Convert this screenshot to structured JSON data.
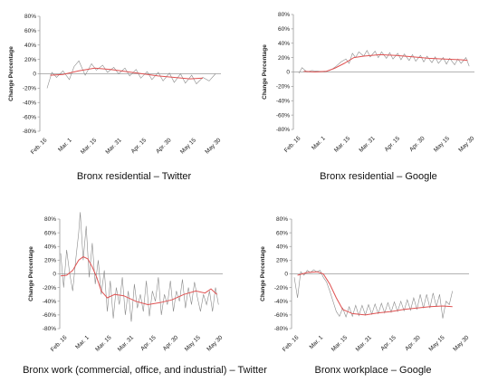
{
  "chart_data": [
    {
      "type": "line",
      "title": "Bronx residential – Twitter",
      "ylabel": "Change Percentage",
      "ylim": [
        -80,
        80
      ],
      "yticks": [
        "80%",
        "60%",
        "40%",
        "20%",
        "0",
        "-20%",
        "-40%",
        "-60%",
        "-80%"
      ],
      "xticks": [
        "Feb. 16",
        "Mar. 1",
        "Mar. 15",
        "Mar. 31",
        "Apr. 15",
        "Apr. 30",
        "May 15",
        "May 30"
      ],
      "colors": {
        "raw": "#8a8a8a",
        "trend": "#e05252"
      },
      "series": [
        {
          "role": "raw",
          "x": [
            0,
            3,
            6,
            10,
            14,
            17,
            20,
            24,
            28,
            31,
            35,
            38,
            42,
            45,
            49,
            52,
            56,
            59,
            63,
            66,
            70,
            73,
            77,
            80,
            84,
            87,
            91,
            94,
            98,
            102,
            106
          ],
          "y": [
            -20,
            2,
            -5,
            4,
            -8,
            10,
            18,
            -2,
            14,
            5,
            12,
            2,
            9,
            0,
            8,
            -3,
            6,
            -6,
            3,
            -8,
            2,
            -10,
            1,
            -12,
            0,
            -13,
            -2,
            -14,
            -5,
            -10,
            0
          ]
        },
        {
          "role": "trend",
          "x": [
            2,
            10,
            20,
            30,
            40,
            50,
            60,
            70,
            80,
            90,
            98
          ],
          "y": [
            -2,
            -1,
            4,
            8,
            6,
            3,
            0,
            -3,
            -5,
            -7,
            -6
          ]
        }
      ]
    },
    {
      "type": "line",
      "title": "Bronx residential – Google",
      "ylabel": "Change Percentage",
      "ylim": [
        -80,
        80
      ],
      "yticks": [
        "80%",
        "60%",
        "40%",
        "20%",
        "0",
        "-20%",
        "-40%",
        "-60%",
        "-80%"
      ],
      "xticks": [
        "Feb. 16",
        "Mar. 1",
        "Mar. 15",
        "Mar. 31",
        "Apr. 15",
        "Apr. 30",
        "May 15",
        "May 30"
      ],
      "colors": {
        "raw": "#8a8a8a",
        "trend": "#e05252"
      },
      "series": [
        {
          "role": "raw",
          "x": [
            0,
            2,
            5,
            8,
            12,
            16,
            20,
            23,
            26,
            29,
            31,
            33,
            35,
            37,
            40,
            42,
            44,
            47,
            49,
            51,
            54,
            56,
            58,
            61,
            63,
            65,
            68,
            70,
            72,
            75,
            77,
            79,
            82,
            84,
            86,
            89,
            91,
            93,
            96,
            98,
            100,
            103,
            105
          ],
          "y": [
            -2,
            6,
            0,
            2,
            1,
            0,
            3,
            8,
            14,
            18,
            12,
            26,
            20,
            28,
            22,
            30,
            21,
            29,
            20,
            28,
            19,
            27,
            18,
            26,
            17,
            25,
            16,
            24,
            15,
            23,
            14,
            22,
            13,
            21,
            12,
            20,
            11,
            19,
            10,
            18,
            12,
            20,
            8
          ]
        },
        {
          "role": "trend",
          "x": [
            3,
            10,
            17,
            22,
            28,
            34,
            40,
            50,
            60,
            70,
            80,
            90,
            100,
            104
          ],
          "y": [
            1,
            0,
            1,
            5,
            12,
            20,
            22,
            24,
            23,
            21,
            19,
            18,
            17,
            16
          ]
        }
      ]
    },
    {
      "type": "line",
      "title": "Bronx work (commercial, office, and industrial) – Twitter",
      "ylabel": "Change Percentage",
      "ylim": [
        -80,
        80
      ],
      "yticks": [
        "80%",
        "60%",
        "40%",
        "20%",
        "0",
        "-20%",
        "-40%",
        "-60%",
        "-80%"
      ],
      "xticks": [
        "Feb. 16",
        "Mar. 1",
        "Mar. 15",
        "Mar. 31",
        "Apr. 15",
        "Apr. 30",
        "May 15",
        "May 30"
      ],
      "colors": {
        "raw": "#8a8a8a",
        "trend": "#e05252"
      },
      "series": [
        {
          "role": "raw",
          "x": [
            0,
            2,
            4,
            6,
            8,
            10,
            12,
            13,
            15,
            17,
            19,
            21,
            23,
            25,
            27,
            29,
            31,
            33,
            35,
            37,
            39,
            41,
            43,
            45,
            47,
            49,
            51,
            53,
            55,
            57,
            59,
            61,
            63,
            65,
            67,
            69,
            71,
            73,
            75,
            77,
            79,
            81,
            83,
            85,
            87,
            89,
            91,
            93,
            95,
            97,
            99,
            101,
            103,
            105
          ],
          "y": [
            30,
            -20,
            35,
            0,
            -25,
            20,
            60,
            90,
            20,
            70,
            -5,
            45,
            -15,
            20,
            -30,
            5,
            -55,
            -10,
            -65,
            -20,
            -45,
            -5,
            -60,
            -25,
            -70,
            -15,
            -50,
            -30,
            -55,
            -10,
            -62,
            -25,
            -40,
            -5,
            -60,
            -30,
            -45,
            -10,
            -55,
            -25,
            -40,
            -8,
            -50,
            -20,
            -45,
            -12,
            -35,
            -55,
            -30,
            -45,
            -25,
            -55,
            -20,
            -45
          ]
        },
        {
          "role": "trend",
          "x": [
            0,
            4,
            8,
            12,
            15,
            18,
            21,
            24,
            27,
            31,
            36,
            42,
            50,
            58,
            66,
            74,
            82,
            90,
            96,
            100,
            104
          ],
          "y": [
            -3,
            -2,
            5,
            20,
            25,
            22,
            10,
            -5,
            -25,
            -35,
            -30,
            -32,
            -40,
            -45,
            -42,
            -38,
            -30,
            -25,
            -28,
            -22,
            -30
          ]
        }
      ]
    },
    {
      "type": "line",
      "title": "Bronx workplace – Google",
      "ylabel": "Change Percentage",
      "ylim": [
        -80,
        80
      ],
      "yticks": [
        "80%",
        "60%",
        "40%",
        "20%",
        "0",
        "-20%",
        "-40%",
        "-60%",
        "-80%"
      ],
      "xticks": [
        "Feb. 16",
        "Mar. 1",
        "Mar. 15",
        "Mar. 31",
        "Apr. 15",
        "Apr. 30",
        "May 15",
        "May 30"
      ],
      "colors": {
        "raw": "#8a8a8a",
        "trend": "#e05252"
      },
      "series": [
        {
          "role": "raw",
          "x": [
            0,
            2,
            4,
            6,
            8,
            10,
            12,
            14,
            16,
            18,
            20,
            22,
            24,
            26,
            28,
            30,
            32,
            34,
            36,
            38,
            40,
            42,
            44,
            46,
            48,
            50,
            52,
            54,
            56,
            58,
            60,
            62,
            64,
            66,
            68,
            70,
            72,
            74,
            76,
            78,
            80,
            82,
            84,
            86,
            88,
            90,
            92,
            94,
            96,
            98
          ],
          "y": [
            -5,
            -35,
            3,
            -2,
            5,
            2,
            6,
            3,
            5,
            -5,
            -12,
            -25,
            -40,
            -55,
            -62,
            -50,
            -63,
            -48,
            -62,
            -46,
            -61,
            -46,
            -60,
            -45,
            -59,
            -44,
            -58,
            -43,
            -57,
            -42,
            -56,
            -41,
            -55,
            -40,
            -54,
            -38,
            -53,
            -35,
            -52,
            -30,
            -50,
            -30,
            -50,
            -28,
            -48,
            -30,
            -65,
            -40,
            -45,
            -25
          ]
        },
        {
          "role": "trend",
          "x": [
            2,
            8,
            14,
            18,
            22,
            26,
            30,
            36,
            44,
            52,
            60,
            68,
            76,
            84,
            92,
            98
          ],
          "y": [
            -2,
            2,
            3,
            0,
            -15,
            -35,
            -52,
            -58,
            -60,
            -57,
            -55,
            -52,
            -50,
            -48,
            -47,
            -48
          ]
        }
      ]
    }
  ]
}
